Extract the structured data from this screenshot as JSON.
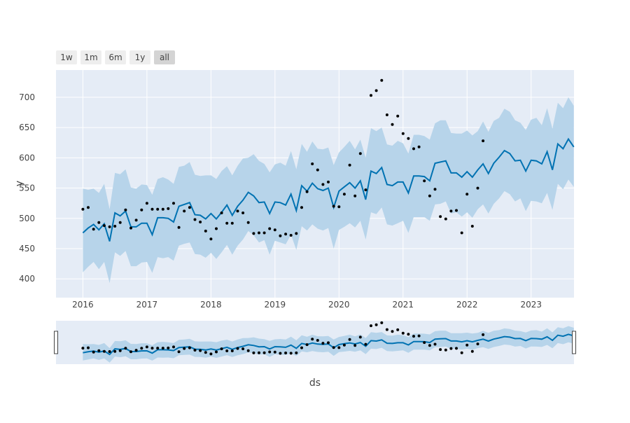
{
  "range_selector": {
    "buttons": [
      {
        "label": "1w",
        "active": false
      },
      {
        "label": "1m",
        "active": false
      },
      {
        "label": "6m",
        "active": false
      },
      {
        "label": "1y",
        "active": false
      },
      {
        "label": "all",
        "active": true
      }
    ]
  },
  "chart_data": {
    "type": "line",
    "xlabel": "ds",
    "ylabel": "y",
    "xlim": [
      2015.58,
      2023.67
    ],
    "ylim": [
      369,
      745
    ],
    "x_ticks": [
      2016,
      2017,
      2018,
      2019,
      2020,
      2021,
      2022,
      2023
    ],
    "x_tick_labels": [
      "2016",
      "2017",
      "2018",
      "2019",
      "2020",
      "2021",
      "2022",
      "2023"
    ],
    "y_ticks": [
      400,
      450,
      500,
      550,
      600,
      650,
      700
    ],
    "y_tick_labels": [
      "400",
      "450",
      "500",
      "550",
      "600",
      "650",
      "700"
    ],
    "grid": true,
    "rangeslider": true,
    "colors": {
      "forecast": "#0072B2",
      "band": "#b7d4ea",
      "actual": "#000000",
      "plot_bg": "#e5ecf6"
    },
    "forecast": {
      "x": [
        2016.0,
        2016.083,
        2016.167,
        2016.25,
        2016.333,
        2016.417,
        2016.5,
        2016.583,
        2016.667,
        2016.75,
        2016.833,
        2016.917,
        2017.0,
        2017.083,
        2017.167,
        2017.25,
        2017.333,
        2017.417,
        2017.5,
        2017.583,
        2017.667,
        2017.75,
        2017.833,
        2017.917,
        2018.0,
        2018.083,
        2018.167,
        2018.25,
        2018.333,
        2018.417,
        2018.5,
        2018.583,
        2018.667,
        2018.75,
        2018.833,
        2018.917,
        2019.0,
        2019.083,
        2019.167,
        2019.25,
        2019.333,
        2019.417,
        2019.5,
        2019.583,
        2019.667,
        2019.75,
        2019.833,
        2019.917,
        2020.0,
        2020.083,
        2020.167,
        2020.25,
        2020.333,
        2020.417,
        2020.5,
        2020.583,
        2020.667,
        2020.75,
        2020.833,
        2020.917,
        2021.0,
        2021.083,
        2021.167,
        2021.25,
        2021.333,
        2021.417,
        2021.5,
        2021.583,
        2021.667,
        2021.75,
        2021.833,
        2021.917,
        2022.0,
        2022.083,
        2022.167,
        2022.25,
        2022.333,
        2022.417,
        2022.5,
        2022.583,
        2022.667,
        2022.75,
        2022.833,
        2022.917,
        2023.0,
        2023.083,
        2023.167,
        2023.25,
        2023.333,
        2023.417,
        2023.5,
        2023.583,
        2023.667
      ],
      "yhat": [
        476,
        484,
        490,
        481,
        491,
        462,
        509,
        504,
        512,
        486,
        486,
        492,
        492,
        473,
        501,
        501,
        500,
        494,
        520,
        523,
        526,
        506,
        505,
        499,
        508,
        499,
        510,
        522,
        505,
        520,
        530,
        543,
        537,
        526,
        527,
        508,
        527,
        526,
        522,
        540,
        513,
        554,
        545,
        558,
        549,
        546,
        550,
        518,
        545,
        552,
        559,
        550,
        562,
        531,
        578,
        574,
        584,
        556,
        554,
        560,
        560,
        542,
        570,
        570,
        569,
        562,
        591,
        593,
        595,
        575,
        575,
        568,
        577,
        568,
        580,
        590,
        574,
        591,
        601,
        612,
        607,
        595,
        596,
        578,
        596,
        595,
        590,
        610,
        580,
        623,
        615,
        631,
        618
      ],
      "upper": [
        549,
        547,
        549,
        542,
        557,
        515,
        575,
        573,
        581,
        551,
        549,
        556,
        555,
        539,
        565,
        568,
        564,
        557,
        585,
        587,
        593,
        572,
        570,
        571,
        571,
        565,
        578,
        586,
        571,
        587,
        599,
        600,
        606,
        595,
        590,
        576,
        589,
        592,
        587,
        611,
        581,
        623,
        610,
        627,
        615,
        614,
        617,
        588,
        609,
        618,
        628,
        614,
        630,
        600,
        649,
        644,
        650,
        622,
        620,
        628,
        624,
        607,
        638,
        638,
        636,
        630,
        657,
        662,
        662,
        641,
        640,
        640,
        645,
        637,
        644,
        660,
        643,
        661,
        666,
        681,
        676,
        662,
        658,
        646,
        663,
        666,
        654,
        682,
        648,
        691,
        682,
        700,
        686
      ],
      "lower": [
        411,
        420,
        428,
        416,
        428,
        393,
        444,
        438,
        446,
        421,
        421,
        427,
        428,
        410,
        436,
        434,
        436,
        430,
        455,
        458,
        460,
        441,
        440,
        435,
        443,
        433,
        444,
        456,
        440,
        455,
        465,
        479,
        472,
        460,
        464,
        440,
        463,
        460,
        457,
        473,
        448,
        487,
        480,
        490,
        483,
        480,
        484,
        450,
        481,
        486,
        492,
        485,
        496,
        465,
        510,
        507,
        518,
        490,
        488,
        492,
        496,
        476,
        502,
        502,
        502,
        496,
        523,
        524,
        528,
        508,
        510,
        503,
        510,
        501,
        515,
        523,
        508,
        524,
        533,
        545,
        540,
        528,
        533,
        512,
        529,
        528,
        525,
        542,
        514,
        557,
        548,
        564,
        552
      ]
    },
    "actual": {
      "x": [
        2016.0,
        2016.083,
        2016.167,
        2016.25,
        2016.333,
        2016.417,
        2016.5,
        2016.583,
        2016.667,
        2016.75,
        2016.833,
        2016.917,
        2017.0,
        2017.083,
        2017.167,
        2017.25,
        2017.333,
        2017.417,
        2017.5,
        2017.583,
        2017.667,
        2017.75,
        2017.833,
        2017.917,
        2018.0,
        2018.083,
        2018.167,
        2018.25,
        2018.333,
        2018.417,
        2018.5,
        2018.583,
        2018.667,
        2018.75,
        2018.833,
        2018.917,
        2019.0,
        2019.083,
        2019.167,
        2019.25,
        2019.333,
        2019.417,
        2019.5,
        2019.583,
        2019.667,
        2019.75,
        2019.833,
        2019.917,
        2020.0,
        2020.083,
        2020.167,
        2020.25,
        2020.333,
        2020.417,
        2020.5,
        2020.583,
        2020.667,
        2020.75,
        2020.833,
        2020.917,
        2021.0,
        2021.083,
        2021.167,
        2021.25,
        2021.333,
        2021.417,
        2021.5,
        2021.583,
        2021.667,
        2021.75,
        2021.833,
        2021.917,
        2022.0,
        2022.083,
        2022.167,
        2022.25
      ],
      "y": [
        515,
        518,
        482,
        493,
        488,
        486,
        487,
        493,
        514,
        484,
        497,
        514,
        525,
        515,
        515,
        515,
        516,
        525,
        485,
        512,
        518,
        498,
        494,
        479,
        466,
        483,
        509,
        492,
        492,
        512,
        509,
        493,
        475,
        476,
        476,
        483,
        481,
        471,
        474,
        472,
        475,
        518,
        544,
        590,
        580,
        556,
        560,
        520,
        519,
        540,
        588,
        537,
        607,
        547,
        703,
        711,
        728,
        671,
        655,
        669,
        640,
        632,
        615,
        618,
        562,
        537,
        548,
        503,
        499,
        512,
        513,
        476,
        540,
        487,
        550,
        628
      ]
    }
  }
}
